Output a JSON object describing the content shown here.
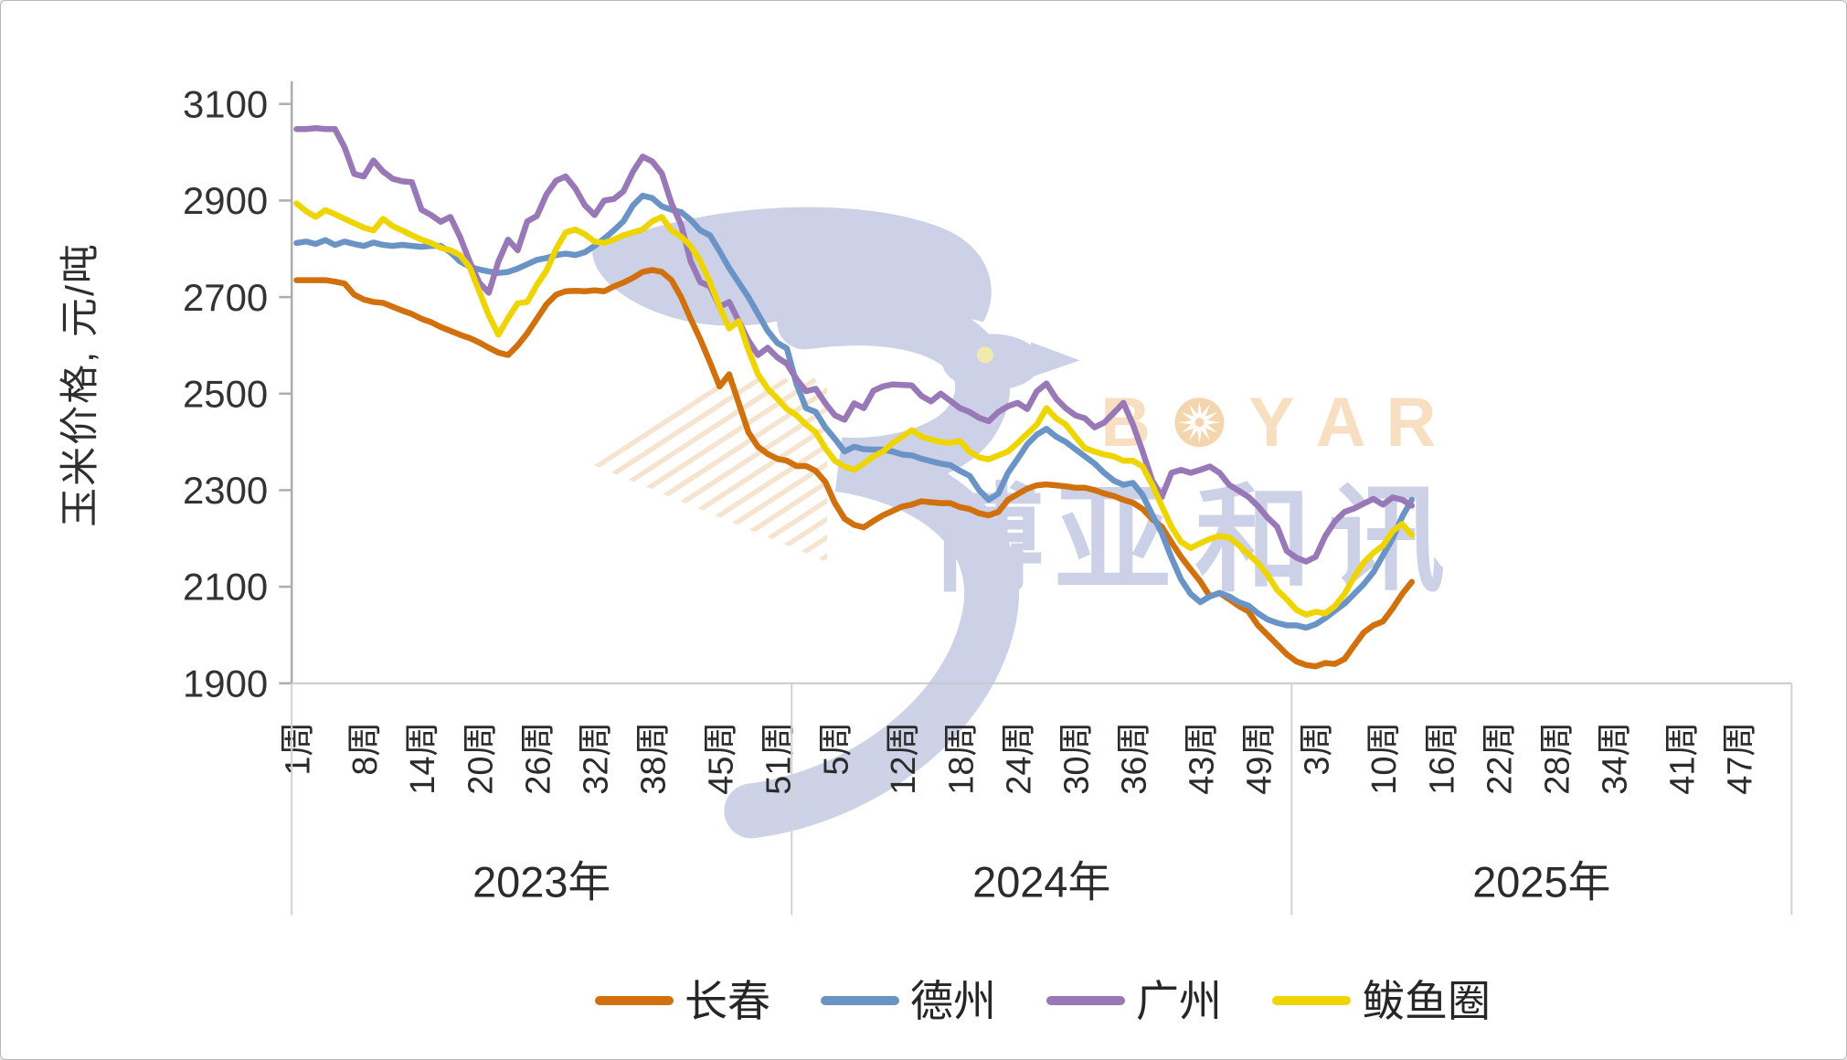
{
  "watermark": {
    "brand": "BOYAR",
    "cn": "博亚和讯"
  },
  "chart_data": {
    "type": "line",
    "title": "",
    "y_axis": {
      "title": "玉米价格, 元/吨",
      "min": 1900,
      "max": 3100,
      "step": 200,
      "tick_labels": [
        "3100",
        "2900",
        "2700",
        "2500",
        "2300",
        "2100",
        "1900"
      ]
    },
    "x_axis": {
      "unit": "周",
      "groups": [
        {
          "year_label": "2023年",
          "weeks": 52,
          "ticks": [
            {
              "week": 1,
              "label": "1周"
            },
            {
              "week": 8,
              "label": "8周"
            },
            {
              "week": 14,
              "label": "14周"
            },
            {
              "week": 20,
              "label": "20周"
            },
            {
              "week": 26,
              "label": "26周"
            },
            {
              "week": 32,
              "label": "32周"
            },
            {
              "week": 38,
              "label": "38周"
            },
            {
              "week": 45,
              "label": "45周"
            },
            {
              "week": 51,
              "label": "51周"
            }
          ]
        },
        {
          "year_label": "2024年",
          "weeks": 52,
          "ticks": [
            {
              "week": 5,
              "label": "5周"
            },
            {
              "week": 12,
              "label": "12周"
            },
            {
              "week": 18,
              "label": "18周"
            },
            {
              "week": 24,
              "label": "24周"
            },
            {
              "week": 30,
              "label": "30周"
            },
            {
              "week": 36,
              "label": "36周"
            },
            {
              "week": 43,
              "label": "43周"
            },
            {
              "week": 49,
              "label": "49周"
            }
          ]
        },
        {
          "year_label": "2025年",
          "weeks": 52,
          "ticks": [
            {
              "week": 3,
              "label": "3周"
            },
            {
              "week": 10,
              "label": "10周"
            },
            {
              "week": 16,
              "label": "16周"
            },
            {
              "week": 22,
              "label": "22周"
            },
            {
              "week": 28,
              "label": "28周"
            },
            {
              "week": 34,
              "label": "34周"
            },
            {
              "week": 41,
              "label": "41周"
            },
            {
              "week": 47,
              "label": "47周"
            }
          ]
        }
      ]
    },
    "legend": {
      "position": "bottom",
      "labels": [
        "长春",
        "德州",
        "广州",
        "鲅鱼圈"
      ]
    },
    "series": [
      {
        "name": "长春",
        "id": "changchun",
        "color": "#D0710E",
        "values_2023": [
          2735,
          2735,
          2735,
          2735,
          2732,
          2728,
          2705,
          2695,
          2690,
          2688,
          2680,
          2672,
          2665,
          2655,
          2648,
          2638,
          2630,
          2622,
          2615,
          2606,
          2595,
          2585,
          2580,
          2600,
          2625,
          2655,
          2685,
          2705,
          2712,
          2713,
          2712,
          2714,
          2712,
          2722,
          2730,
          2740,
          2752,
          2756,
          2752,
          2735,
          2700,
          2655,
          2612,
          2565,
          2515,
          2540,
          2480,
          2420,
          2390,
          2375,
          2365,
          2361
        ],
        "values_2024": [
          2350,
          2350,
          2340,
          2317,
          2273,
          2241,
          2228,
          2223,
          2236,
          2248,
          2257,
          2266,
          2270,
          2277,
          2275,
          2273,
          2273,
          2265,
          2261,
          2252,
          2248,
          2255,
          2280,
          2292,
          2303,
          2310,
          2312,
          2310,
          2308,
          2305,
          2305,
          2300,
          2293,
          2288,
          2280,
          2274,
          2261,
          2240,
          2224,
          2192,
          2162,
          2136,
          2111,
          2080,
          2087,
          2074,
          2060,
          2049,
          2020,
          2000,
          1980,
          1960
        ],
        "values_2025": [
          1945,
          1938,
          1935,
          1942,
          1940,
          1950,
          1978,
          2005,
          2020,
          2028,
          2055,
          2085,
          2110
        ]
      },
      {
        "name": "德州",
        "id": "dezhou",
        "color": "#6A94C6",
        "values_2023": [
          2812,
          2815,
          2810,
          2818,
          2808,
          2815,
          2810,
          2806,
          2813,
          2808,
          2806,
          2808,
          2806,
          2804,
          2806,
          2806,
          2793,
          2774,
          2763,
          2757,
          2753,
          2750,
          2752,
          2759,
          2768,
          2777,
          2781,
          2787,
          2790,
          2787,
          2793,
          2806,
          2821,
          2838,
          2857,
          2890,
          2910,
          2905,
          2888,
          2881,
          2876,
          2860,
          2838,
          2828,
          2795,
          2760,
          2730,
          2700,
          2665,
          2630,
          2605,
          2594
        ],
        "values_2024": [
          2520,
          2470,
          2462,
          2430,
          2406,
          2380,
          2390,
          2385,
          2384,
          2384,
          2380,
          2374,
          2372,
          2365,
          2360,
          2355,
          2352,
          2340,
          2330,
          2300,
          2280,
          2293,
          2336,
          2365,
          2395,
          2415,
          2427,
          2411,
          2400,
          2385,
          2370,
          2355,
          2336,
          2320,
          2311,
          2315,
          2290,
          2249,
          2211,
          2160,
          2115,
          2085,
          2068,
          2080,
          2087,
          2080,
          2068,
          2061,
          2045,
          2032,
          2025,
          2020
        ],
        "values_2025": [
          2020,
          2015,
          2022,
          2035,
          2050,
          2065,
          2085,
          2105,
          2130,
          2165,
          2200,
          2245,
          2280
        ]
      },
      {
        "name": "广州",
        "id": "guangzhou",
        "color": "#9878B6",
        "values_2023": [
          3048,
          3048,
          3050,
          3048,
          3048,
          3010,
          2955,
          2950,
          2983,
          2960,
          2945,
          2940,
          2938,
          2881,
          2870,
          2856,
          2866,
          2825,
          2774,
          2730,
          2709,
          2774,
          2819,
          2797,
          2857,
          2868,
          2913,
          2941,
          2950,
          2925,
          2890,
          2870,
          2900,
          2903,
          2919,
          2960,
          2991,
          2981,
          2956,
          2894,
          2850,
          2774,
          2731,
          2722,
          2680,
          2690,
          2650,
          2610,
          2580,
          2595,
          2575,
          2562
        ],
        "values_2024": [
          2530,
          2505,
          2510,
          2480,
          2455,
          2446,
          2480,
          2470,
          2506,
          2515,
          2519,
          2518,
          2517,
          2495,
          2484,
          2500,
          2485,
          2470,
          2462,
          2450,
          2443,
          2462,
          2474,
          2481,
          2468,
          2505,
          2521,
          2490,
          2470,
          2455,
          2449,
          2430,
          2440,
          2460,
          2481,
          2436,
          2380,
          2320,
          2286,
          2336,
          2342,
          2336,
          2342,
          2349,
          2336,
          2311,
          2299,
          2286,
          2267,
          2243,
          2224,
          2174
        ],
        "values_2025": [
          2160,
          2152,
          2162,
          2205,
          2235,
          2255,
          2262,
          2272,
          2282,
          2270,
          2285,
          2280,
          2268
        ]
      },
      {
        "name": "鲅鱼圈",
        "id": "bayuquan",
        "color": "#EFD500",
        "values_2023": [
          2894,
          2878,
          2866,
          2880,
          2872,
          2862,
          2853,
          2844,
          2838,
          2862,
          2847,
          2838,
          2828,
          2819,
          2812,
          2802,
          2797,
          2787,
          2762,
          2712,
          2662,
          2622,
          2656,
          2687,
          2690,
          2725,
          2755,
          2800,
          2834,
          2840,
          2830,
          2815,
          2812,
          2819,
          2828,
          2834,
          2840,
          2857,
          2866,
          2838,
          2825,
          2806,
          2774,
          2731,
          2680,
          2635,
          2650,
          2590,
          2540,
          2510,
          2490,
          2468
        ],
        "values_2024": [
          2455,
          2436,
          2420,
          2387,
          2361,
          2349,
          2342,
          2355,
          2370,
          2380,
          2398,
          2411,
          2424,
          2411,
          2405,
          2400,
          2398,
          2402,
          2380,
          2368,
          2364,
          2372,
          2380,
          2398,
          2417,
          2436,
          2470,
          2449,
          2436,
          2411,
          2387,
          2380,
          2374,
          2370,
          2361,
          2361,
          2349,
          2311,
          2267,
          2224,
          2193,
          2180,
          2190,
          2199,
          2205,
          2202,
          2186,
          2168,
          2149,
          2124,
          2093,
          2074
        ],
        "values_2025": [
          2052,
          2042,
          2048,
          2045,
          2060,
          2085,
          2120,
          2150,
          2170,
          2185,
          2215,
          2230,
          2207
        ]
      }
    ],
    "style": {
      "axis_color": "#ADADAD",
      "grid_color": "#C9C9C9",
      "separator_color": "#D2D2D2",
      "text_color": "#2E2E2E",
      "line_width": 6.5,
      "watermark_lavender": "#C9CEE5",
      "watermark_peach": "#F8DDBC",
      "watermark_peach_deep": "#F3D2A8",
      "watermark_eye": "#F0E9A8"
    }
  }
}
